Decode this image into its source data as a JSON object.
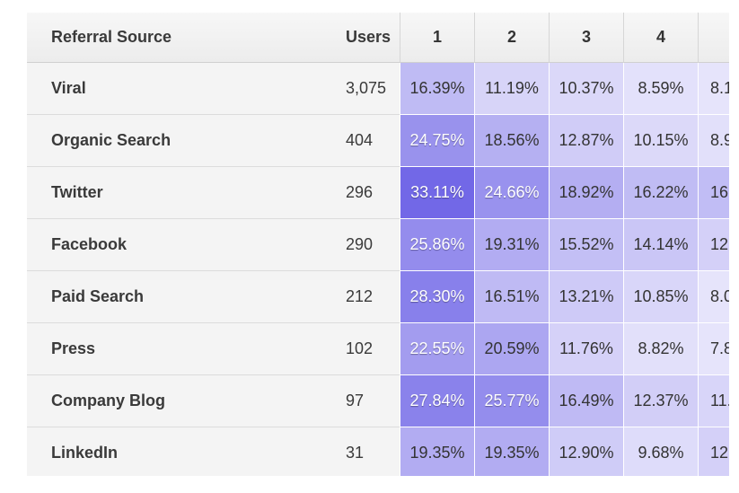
{
  "table": {
    "header": {
      "source_label": "Referral Source",
      "users_label": "Users",
      "periods": [
        "1",
        "2",
        "3",
        "4",
        ""
      ]
    },
    "rows": [
      {
        "source": "Viral",
        "users": "3,075",
        "values": [
          "16.39%",
          "11.19%",
          "10.37%",
          "8.59%",
          "8.1"
        ]
      },
      {
        "source": "Organic Search",
        "users": "404",
        "values": [
          "24.75%",
          "18.56%",
          "12.87%",
          "10.15%",
          "8.9"
        ]
      },
      {
        "source": "Twitter",
        "users": "296",
        "values": [
          "33.11%",
          "24.66%",
          "18.92%",
          "16.22%",
          "16."
        ]
      },
      {
        "source": "Facebook",
        "users": "290",
        "values": [
          "25.86%",
          "19.31%",
          "15.52%",
          "14.14%",
          "12."
        ]
      },
      {
        "source": "Paid Search",
        "users": "212",
        "values": [
          "28.30%",
          "16.51%",
          "13.21%",
          "10.85%",
          "8.0"
        ]
      },
      {
        "source": "Press",
        "users": "102",
        "values": [
          "22.55%",
          "20.59%",
          "11.76%",
          "8.82%",
          "7.8"
        ]
      },
      {
        "source": "Company Blog",
        "users": "97",
        "values": [
          "27.84%",
          "25.77%",
          "16.49%",
          "12.37%",
          "11."
        ]
      },
      {
        "source": "LinkedIn",
        "users": "31",
        "values": [
          "19.35%",
          "19.35%",
          "12.90%",
          "9.68%",
          "12."
        ]
      }
    ]
  },
  "colors": {
    "heat_light": "#e6e4fb",
    "heat_dark": "#6e64e6"
  }
}
